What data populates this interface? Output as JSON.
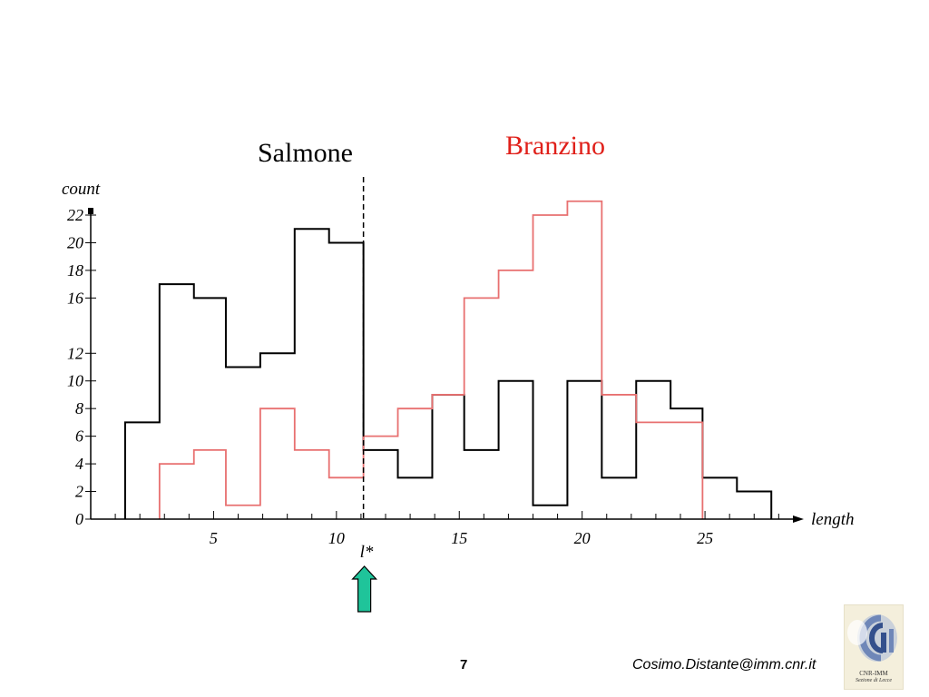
{
  "chart_data": {
    "type": "histogram",
    "xlabel": "length",
    "ylabel": "count",
    "xlim": [
      0,
      28.8
    ],
    "ylim": [
      0,
      22
    ],
    "x_ticks": [
      5,
      10,
      15,
      20,
      25
    ],
    "y_ticks": [
      0,
      2,
      4,
      6,
      8,
      10,
      12,
      16,
      18,
      20,
      22
    ],
    "threshold_label": "l*",
    "threshold_x": 11.1,
    "series": [
      {
        "name": "Salmone",
        "color": "#000000",
        "steps": [
          {
            "x0": 1.4,
            "x1": 2.8,
            "value": 7
          },
          {
            "x0": 2.8,
            "x1": 4.2,
            "value": 17
          },
          {
            "x0": 4.2,
            "x1": 5.5,
            "value": 16
          },
          {
            "x0": 5.5,
            "x1": 6.9,
            "value": 11
          },
          {
            "x0": 6.9,
            "x1": 8.3,
            "value": 12
          },
          {
            "x0": 8.3,
            "x1": 9.7,
            "value": 21
          },
          {
            "x0": 9.7,
            "x1": 11.1,
            "value": 20
          },
          {
            "x0": 11.1,
            "x1": 12.5,
            "value": 5
          },
          {
            "x0": 12.5,
            "x1": 13.9,
            "value": 3
          },
          {
            "x0": 13.9,
            "x1": 15.2,
            "value": 9
          },
          {
            "x0": 15.2,
            "x1": 16.6,
            "value": 5
          },
          {
            "x0": 16.6,
            "x1": 18.0,
            "value": 10
          },
          {
            "x0": 18.0,
            "x1": 19.4,
            "value": 1
          },
          {
            "x0": 19.4,
            "x1": 20.8,
            "value": 10
          },
          {
            "x0": 20.8,
            "x1": 22.2,
            "value": 3
          },
          {
            "x0": 22.2,
            "x1": 23.6,
            "value": 10
          },
          {
            "x0": 23.6,
            "x1": 24.9,
            "value": 8
          },
          {
            "x0": 24.9,
            "x1": 26.3,
            "value": 3
          },
          {
            "x0": 26.3,
            "x1": 27.7,
            "value": 2
          }
        ]
      },
      {
        "name": "Branzino",
        "color": "#e87070",
        "steps": [
          {
            "x0": 2.8,
            "x1": 4.2,
            "value": 4
          },
          {
            "x0": 4.2,
            "x1": 5.5,
            "value": 5
          },
          {
            "x0": 5.5,
            "x1": 6.9,
            "value": 1
          },
          {
            "x0": 6.9,
            "x1": 8.3,
            "value": 8
          },
          {
            "x0": 8.3,
            "x1": 9.7,
            "value": 5
          },
          {
            "x0": 9.7,
            "x1": 11.1,
            "value": 3
          },
          {
            "x0": 11.1,
            "x1": 12.5,
            "value": 6
          },
          {
            "x0": 12.5,
            "x1": 13.9,
            "value": 8
          },
          {
            "x0": 13.9,
            "x1": 15.2,
            "value": 9
          },
          {
            "x0": 15.2,
            "x1": 16.6,
            "value": 16
          },
          {
            "x0": 16.6,
            "x1": 18.0,
            "value": 18
          },
          {
            "x0": 18.0,
            "x1": 19.4,
            "value": 22
          },
          {
            "x0": 19.4,
            "x1": 20.8,
            "value": 23
          },
          {
            "x0": 20.8,
            "x1": 22.2,
            "value": 9
          },
          {
            "x0": 22.2,
            "x1": 23.6,
            "value": 7
          },
          {
            "x0": 23.6,
            "x1": 24.9,
            "value": 7
          }
        ]
      }
    ]
  },
  "labels": {
    "salmone": "Salmone",
    "branzino": "Branzino"
  },
  "arrow_color": "#1fc49a",
  "footer": {
    "page_number": "7",
    "email": "Cosimo.Distante@imm.cnr.it"
  },
  "logo": {
    "line1": "CNR-IMM",
    "line2": "Sezione di Lecce"
  }
}
